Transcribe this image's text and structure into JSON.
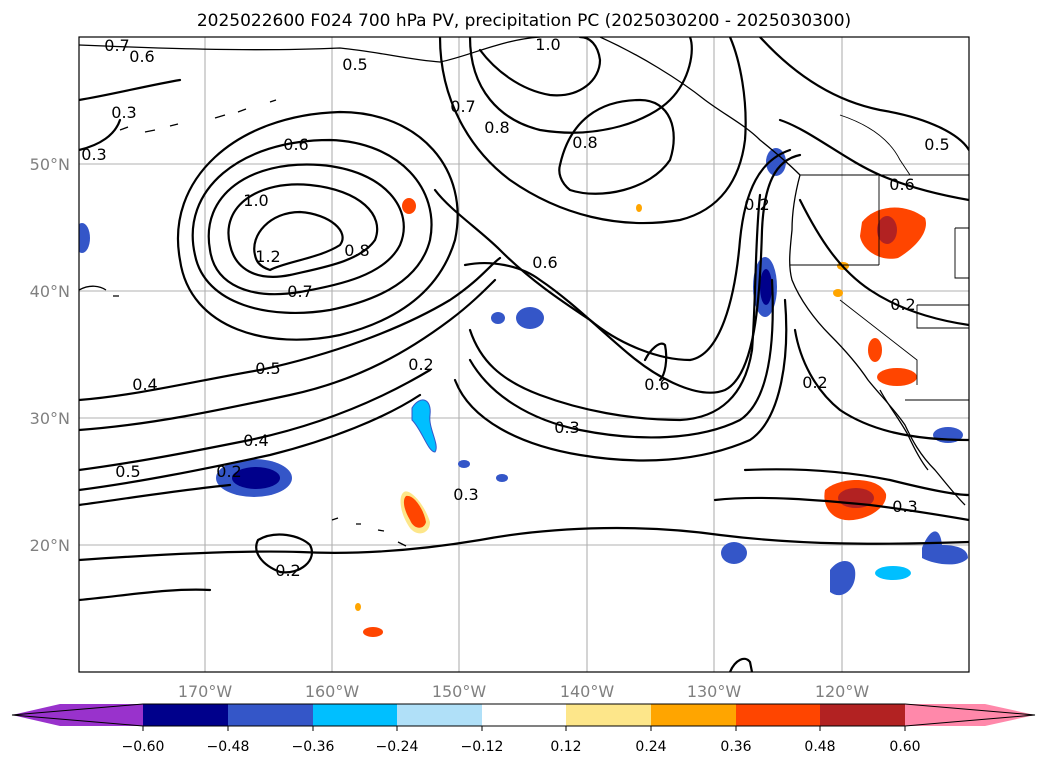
{
  "title": "2025022600 F024 700 hPa PV, precipitation PC (2025030200 - 2025030300)",
  "map": {
    "lat_ticks": [
      "50°N",
      "40°N",
      "30°N",
      "20°N"
    ],
    "lon_ticks": [
      "170°W",
      "160°W",
      "150°W",
      "140°W",
      "130°W",
      "120°W"
    ],
    "contour_labels": [
      "0.7",
      "0.6",
      "0.5",
      "1.0",
      "0.3",
      "0.3",
      "0.6",
      "0.7",
      "0.8",
      "0.8",
      "0.5",
      "0.6",
      "1.0",
      "1.2",
      "0.8",
      "0.7",
      "0.6",
      "0.2",
      "0.2",
      "0.4",
      "0.5",
      "0.2",
      "0.6",
      "0.2",
      "0.3",
      "0.4",
      "0.5",
      "0.2",
      "0.3",
      "0.3",
      "0.2"
    ]
  },
  "colorbar": {
    "ticks": [
      "−0.60",
      "−0.48",
      "−0.36",
      "−0.24",
      "−0.12",
      "0.12",
      "0.24",
      "0.36",
      "0.48",
      "0.60"
    ],
    "colors": [
      "#9932cc",
      "#00008b",
      "#3456c8",
      "#00bfff",
      "#b0e0f8",
      "#ffffff",
      "#fde68a",
      "#ffa500",
      "#ff4500",
      "#b22222",
      "#ff88aa"
    ]
  }
}
